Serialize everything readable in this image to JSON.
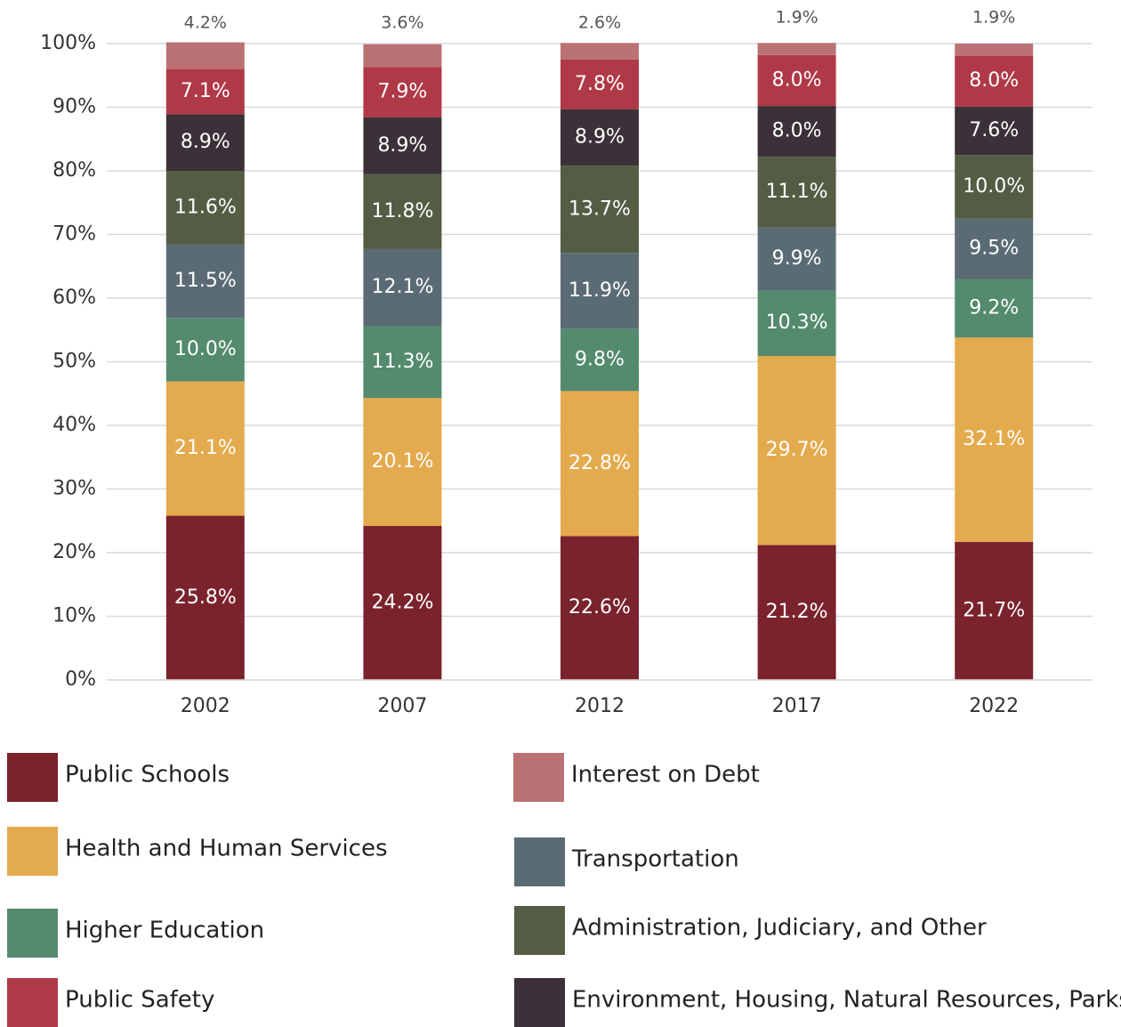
{
  "chart_data": {
    "type": "stacked_bar",
    "categories": [
      "2002",
      "2007",
      "2012",
      "2017",
      "2022"
    ],
    "ylim": [
      0,
      100
    ],
    "yticks": [
      {
        "value": 0,
        "label": "0%"
      },
      {
        "value": 10,
        "label": "10%"
      },
      {
        "value": 20,
        "label": "20%"
      },
      {
        "value": 30,
        "label": "30%"
      },
      {
        "value": 40,
        "label": "40%"
      },
      {
        "value": 50,
        "label": "50%"
      },
      {
        "value": 60,
        "label": "60%"
      },
      {
        "value": 70,
        "label": "70%"
      },
      {
        "value": 80,
        "label": "80%"
      },
      {
        "value": 90,
        "label": "90%"
      },
      {
        "value": 100,
        "label": "100%"
      }
    ],
    "grid": true,
    "series": [
      {
        "name": "Public Schools",
        "color": "#7a232d",
        "values": [
          25.8,
          24.2,
          22.6,
          21.2,
          21.7
        ],
        "value_labels": [
          "25.8%",
          "24.2%",
          "22.6%",
          "21.2%",
          "21.7%"
        ]
      },
      {
        "name": "Health and Human Services",
        "color": "#e4aa4e",
        "values": [
          21.1,
          20.1,
          22.8,
          29.7,
          32.1
        ],
        "value_labels": [
          "21.1%",
          "20.1%",
          "22.8%",
          "29.7%",
          "32.1%"
        ]
      },
      {
        "name": "Higher Education",
        "color": "#548a6e",
        "values": [
          10.0,
          11.3,
          9.8,
          10.3,
          9.2
        ],
        "value_labels": [
          "10.0%",
          "11.3%",
          "9.8%",
          "10.3%",
          "9.2%"
        ]
      },
      {
        "name": "Transportation",
        "color": "#5a6b74",
        "values": [
          11.5,
          12.1,
          11.9,
          9.9,
          9.5
        ],
        "value_labels": [
          "11.5%",
          "12.1%",
          "11.9%",
          "9.9%",
          "9.5%"
        ]
      },
      {
        "name": "Administration, Judiciary, and Other",
        "color": "#545d44",
        "values": [
          11.6,
          11.8,
          13.7,
          11.1,
          10.0
        ],
        "value_labels": [
          "11.6%",
          "11.8%",
          "13.7%",
          "11.1%",
          "10.0%"
        ]
      },
      {
        "name": "Environment, Housing, Natural Resources, Parks",
        "color": "#3c3138",
        "values": [
          8.9,
          8.9,
          8.9,
          8.0,
          7.6
        ],
        "value_labels": [
          "8.9%",
          "8.9%",
          "8.9%",
          "8.0%",
          "7.6%"
        ]
      },
      {
        "name": "Public Safety",
        "color": "#b03947",
        "values": [
          7.1,
          7.9,
          7.8,
          8.0,
          8.0
        ],
        "value_labels": [
          "7.1%",
          "7.9%",
          "7.8%",
          "8.0%",
          "8.0%"
        ]
      },
      {
        "name": "Interest on Debt",
        "color": "#ba7274",
        "values": [
          4.2,
          3.6,
          2.6,
          1.9,
          1.9
        ],
        "value_labels": [
          "4.2%",
          "3.6%",
          "2.6%",
          "1.9%",
          "1.9%"
        ]
      }
    ]
  }
}
